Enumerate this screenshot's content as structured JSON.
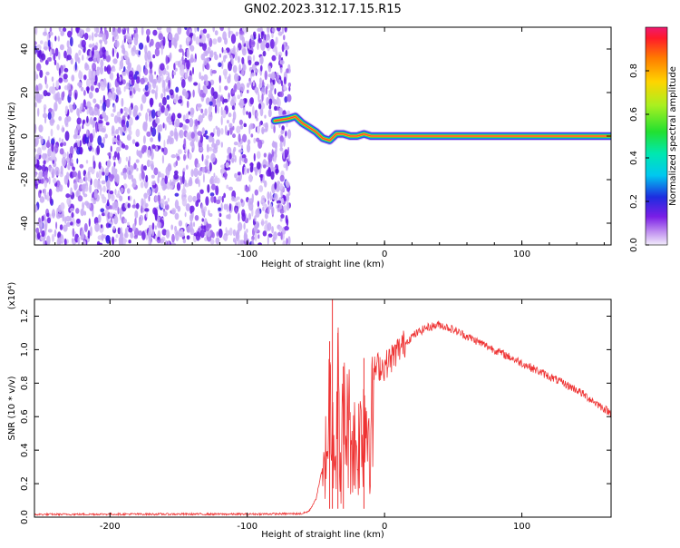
{
  "figure_title": "GN02.2023.312.17.15.R15",
  "colors": {
    "snr_line": "#ee3333",
    "tone_core": "#ff3355",
    "noise": "#6a1ae6",
    "noise_light": "#c7aaf5"
  },
  "chart_data": [
    {
      "type": "heatmap",
      "title": "",
      "xlabel": "Height of straight line (km)",
      "ylabel": "Frequency (Hz)",
      "xlim": [
        -255,
        165
      ],
      "ylim": [
        -50,
        50
      ],
      "x_ticks": [
        -200,
        -100,
        0,
        100
      ],
      "y_ticks": [
        -40,
        -20,
        0,
        20,
        40
      ],
      "colorbar": {
        "label": "Normalized spectral amplitude",
        "range": [
          0,
          1
        ],
        "ticks": [
          "0.0",
          "0.2",
          "0.4",
          "0.6",
          "0.8"
        ],
        "colormap": "rainbow"
      },
      "noise_region_x": [
        -255,
        -73
      ],
      "tone_track": {
        "x": [
          -80,
          -70,
          -65,
          -60,
          -55,
          -50,
          -45,
          -40,
          -35,
          -30,
          -25,
          -20,
          -15,
          -10,
          0,
          50,
          100,
          165
        ],
        "y": [
          7,
          8,
          9,
          6,
          4,
          2,
          -1,
          -2,
          1,
          1,
          0,
          0,
          1,
          0,
          0,
          0,
          0,
          0
        ]
      }
    },
    {
      "type": "line",
      "title": "",
      "xlabel": "Height of straight line (km)",
      "ylabel": "SNR (10 * v/v)",
      "y_multiplier": "(x10⁴)",
      "xlim": [
        -255,
        165
      ],
      "ylim": [
        0,
        1.3
      ],
      "x_ticks": [
        -200,
        -100,
        0,
        100
      ],
      "y_ticks": [
        "0.0",
        "0.2",
        "0.4",
        "0.6",
        "0.8",
        "1.0",
        "1.2"
      ],
      "series": [
        {
          "x": [
            -255,
            -200,
            -100,
            -60,
            -55,
            -50,
            -45,
            -42,
            -40,
            -38,
            -36,
            -34,
            -32,
            -30,
            -25,
            -20,
            -15,
            -10,
            -5,
            0,
            10,
            20,
            30,
            40,
            50,
            60,
            80,
            100,
            120,
            140,
            165
          ],
          "y": [
            0.01,
            0.012,
            0.012,
            0.015,
            0.03,
            0.1,
            0.3,
            0.7,
            1.05,
            1.3,
            0.5,
            1.1,
            0.4,
            0.9,
            0.8,
            0.6,
            0.95,
            0.85,
            0.9,
            0.9,
            1.0,
            1.08,
            1.13,
            1.15,
            1.12,
            1.08,
            1.0,
            0.92,
            0.84,
            0.76,
            0.62
          ]
        }
      ]
    }
  ]
}
